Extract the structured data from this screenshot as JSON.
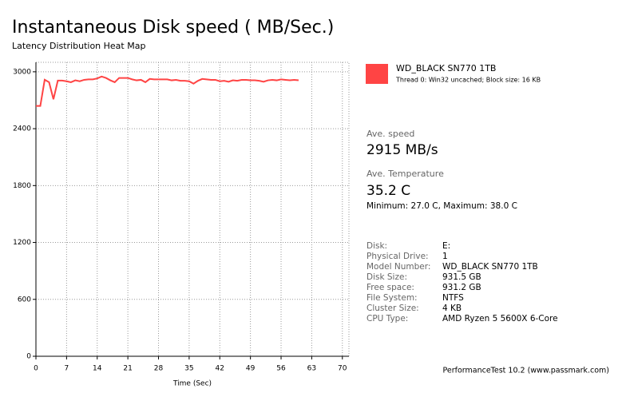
{
  "chart_data": {
    "type": "line",
    "title": "Instantaneous Disk speed ( MB/Sec.)",
    "subtitle": "Latency Distribution Heat Map",
    "x_label": "Time (Sec)",
    "xlim": [
      0,
      71.5
    ],
    "xticks": [
      0,
      7,
      14,
      21,
      28,
      35,
      42,
      49,
      56,
      63,
      70
    ],
    "ylim": [
      0,
      3100
    ],
    "yticks": [
      0,
      600,
      1200,
      1800,
      2400,
      3000
    ],
    "grid": true,
    "x": [
      0,
      1,
      2,
      3,
      4,
      5,
      6,
      7,
      8,
      9,
      10,
      11,
      12,
      13,
      14,
      15,
      16,
      17,
      18,
      19,
      20,
      21,
      22,
      23,
      24,
      25,
      26,
      27,
      28,
      29,
      30,
      31,
      32,
      33,
      34,
      35,
      36,
      37,
      38,
      39,
      40,
      41,
      42,
      43,
      44,
      45,
      46,
      47,
      48,
      49,
      50,
      51,
      52,
      53,
      54,
      55,
      56,
      57,
      58,
      59,
      60
    ],
    "series": [
      {
        "name": "WD_BLACK SN770 1TB",
        "color": "#ff4444",
        "values": [
          2640,
          2640,
          2916,
          2890,
          2710,
          2907,
          2907,
          2900,
          2890,
          2910,
          2900,
          2915,
          2920,
          2920,
          2930,
          2950,
          2935,
          2910,
          2890,
          2935,
          2935,
          2935,
          2920,
          2910,
          2915,
          2890,
          2925,
          2920,
          2920,
          2920,
          2920,
          2910,
          2915,
          2905,
          2905,
          2900,
          2875,
          2905,
          2925,
          2920,
          2915,
          2915,
          2900,
          2905,
          2895,
          2910,
          2905,
          2915,
          2915,
          2910,
          2910,
          2905,
          2895,
          2910,
          2915,
          2910,
          2920,
          2915,
          2910,
          2915,
          2910
        ]
      }
    ]
  },
  "panel": {
    "legend_detail": "Thread 0: Win32 uncached; Block size: 16 KB",
    "speed_label": "Ave. speed",
    "speed_value": "2915 MB/s",
    "temp_label": "Ave. Temperature",
    "temp_value": "35.2 C",
    "temp_range": "Minimum: 27.0 C, Maximum: 38.0 C",
    "rows": [
      [
        "Disk:",
        "E:"
      ],
      [
        "Physical Drive:",
        "1"
      ],
      [
        "Model Number:",
        "WD_BLACK SN770 1TB"
      ],
      [
        "Disk Size:",
        "931.5 GB"
      ],
      [
        "Free space:",
        "931.2 GB"
      ],
      [
        "File System:",
        "NTFS"
      ],
      [
        "Cluster Size:",
        "4 KB"
      ],
      [
        "CPU Type:",
        "AMD Ryzen 5 5600X 6-Core"
      ]
    ],
    "footer": "PerformanceTest 10.2 (www.passmark.com)"
  }
}
